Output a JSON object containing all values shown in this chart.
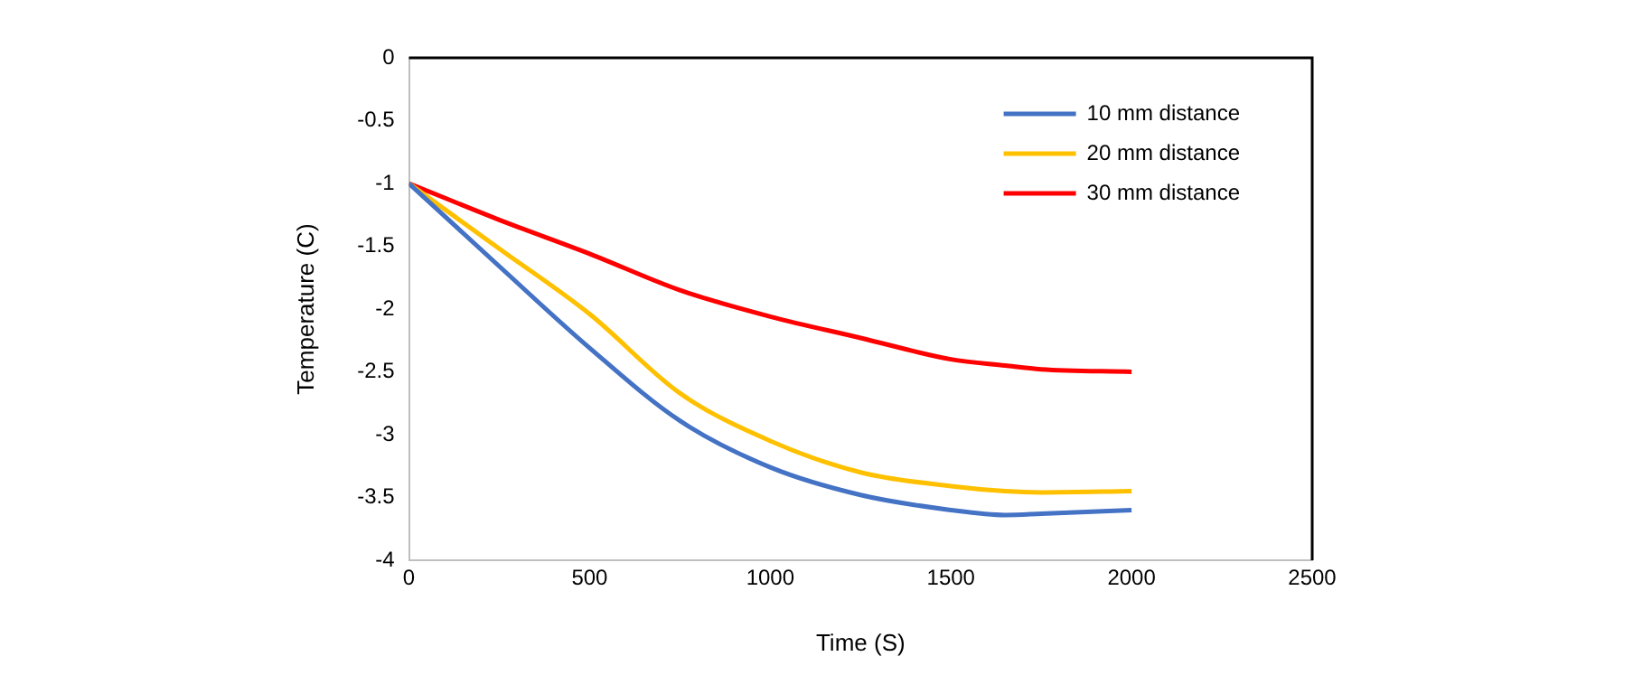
{
  "chart_data": {
    "type": "line",
    "xlabel": "Time (S)",
    "ylabel": "Temperature (C)",
    "xlim": [
      0,
      2500
    ],
    "xticks": [
      0,
      500,
      1000,
      1500,
      2000,
      2500
    ],
    "ylim": [
      -4,
      0
    ],
    "yticks": [
      -4,
      -3.5,
      -3,
      -2.5,
      -2,
      -1.5,
      -1,
      -0.5,
      0
    ],
    "grid": false,
    "legend": "top right",
    "marker": "none",
    "line_style": "solid",
    "x": [
      0,
      250,
      500,
      750,
      1000,
      1250,
      1500,
      1650,
      1750,
      2000
    ],
    "series": [
      {
        "name": "10 mm distance",
        "color": "#4472c4",
        "values": [
          -1,
          -1.66,
          -2.31,
          -2.89,
          -3.26,
          -3.48,
          -3.6,
          -3.64,
          -3.63,
          -3.6
        ]
      },
      {
        "name": "20 mm distance",
        "color": "#ffc000",
        "values": [
          -1,
          -1.52,
          -2.04,
          -2.67,
          -3.05,
          -3.3,
          -3.41,
          -3.45,
          -3.46,
          -3.45
        ]
      },
      {
        "name": "30 mm distance",
        "color": "#ff0000",
        "values": [
          -1,
          -1.29,
          -1.56,
          -1.85,
          -2.06,
          -2.23,
          -2.4,
          -2.45,
          -2.48,
          -2.5
        ]
      }
    ]
  }
}
